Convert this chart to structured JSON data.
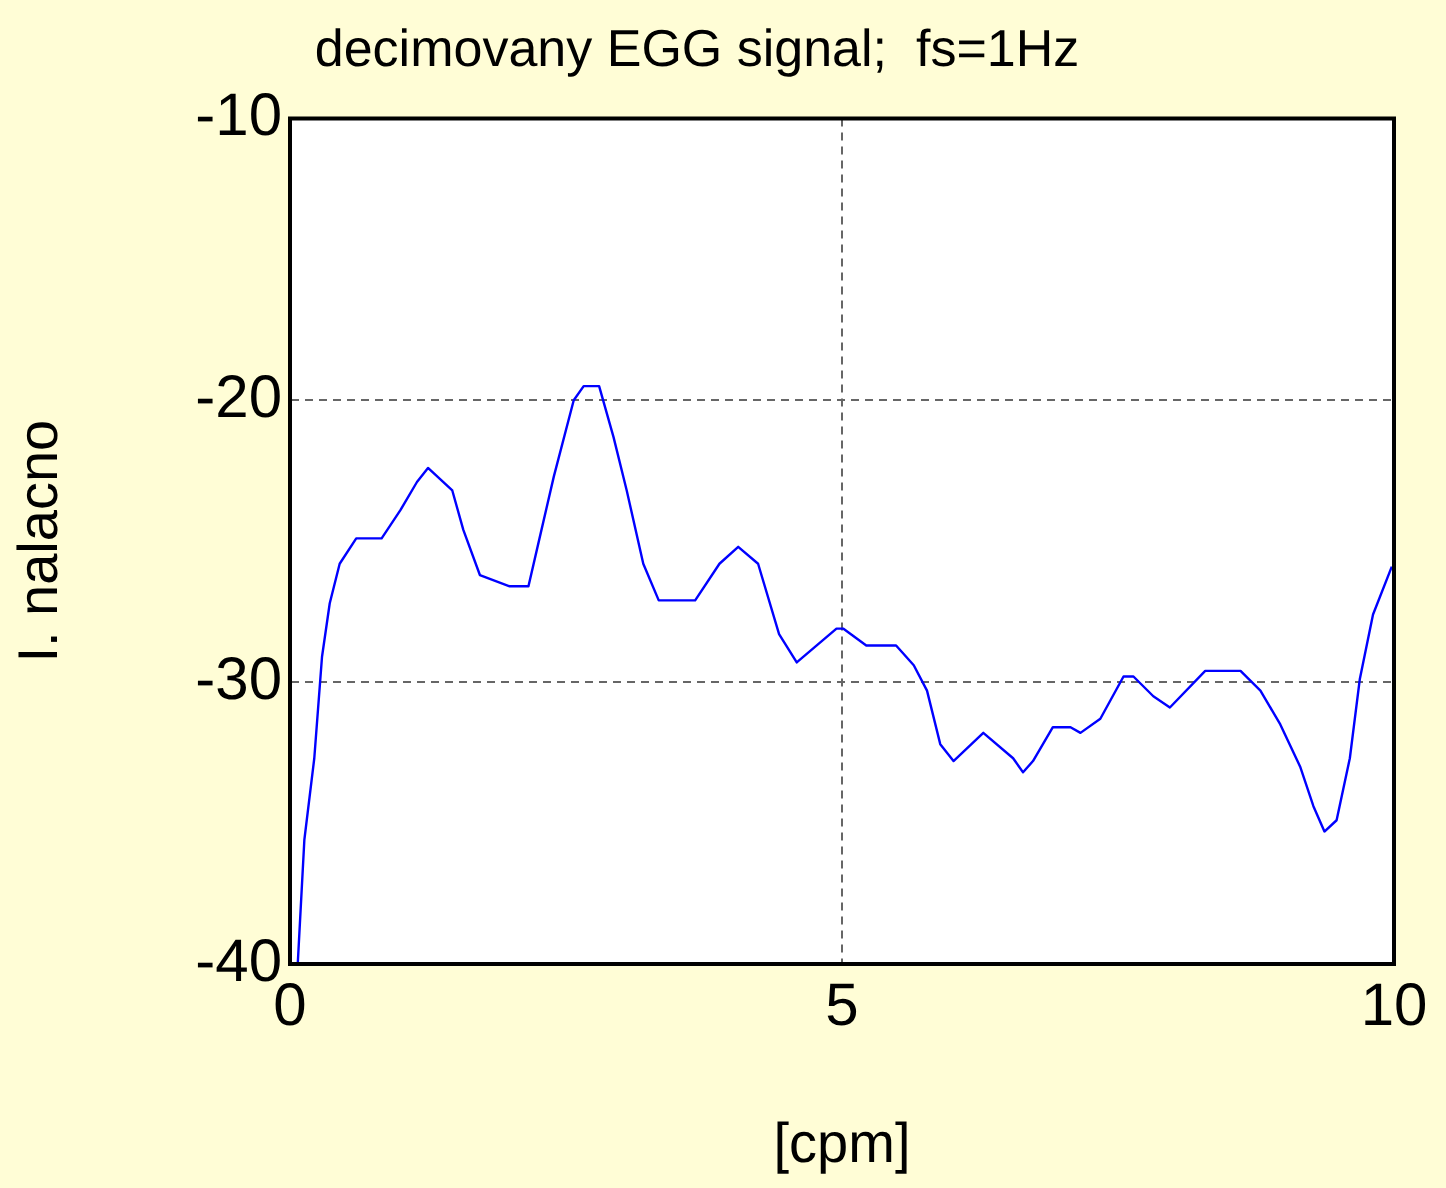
{
  "chart_data": {
    "type": "line",
    "title": "decimovany EGG signal;  fs=1Hz",
    "xlabel": "[cpm]",
    "ylabel": "I. nalacno",
    "xlim": [
      0,
      10
    ],
    "ylim": [
      -40,
      -10
    ],
    "xticks": [
      0,
      5,
      10
    ],
    "yticks": [
      -40,
      -30,
      -20,
      -10
    ],
    "grid": true,
    "legend": false,
    "marker": "none",
    "series": [
      {
        "color": "#0000ff",
        "x": [
          0.07,
          0.13,
          0.22,
          0.29,
          0.36,
          0.45,
          0.6,
          0.83,
          1.0,
          1.15,
          1.25,
          1.47,
          1.57,
          1.72,
          1.99,
          2.16,
          2.26,
          2.39,
          2.57,
          2.66,
          2.8,
          2.93,
          3.05,
          3.2,
          3.34,
          3.67,
          3.89,
          4.06,
          4.24,
          4.43,
          4.59,
          4.95,
          5.01,
          5.22,
          5.49,
          5.65,
          5.77,
          5.89,
          6.01,
          6.28,
          6.55,
          6.64,
          6.73,
          6.91,
          7.07,
          7.16,
          7.34,
          7.55,
          7.64,
          7.82,
          7.97,
          8.29,
          8.61,
          8.79,
          8.97,
          9.15,
          9.27,
          9.37,
          9.48,
          9.6,
          9.69,
          9.81,
          9.98
        ],
        "values": [
          -40.0,
          -35.6,
          -32.7,
          -29.1,
          -27.2,
          -25.8,
          -24.9,
          -24.9,
          -23.9,
          -22.9,
          -22.4,
          -23.2,
          -24.6,
          -26.2,
          -26.6,
          -26.6,
          -24.9,
          -22.7,
          -20.0,
          -19.5,
          -19.5,
          -21.3,
          -23.2,
          -25.8,
          -27.1,
          -27.1,
          -25.8,
          -25.2,
          -25.8,
          -28.3,
          -29.3,
          -28.1,
          -28.1,
          -28.7,
          -28.7,
          -29.4,
          -30.3,
          -32.2,
          -32.8,
          -31.8,
          -32.7,
          -33.2,
          -32.8,
          -31.6,
          -31.6,
          -31.8,
          -31.3,
          -29.8,
          -29.8,
          -30.5,
          -30.9,
          -29.6,
          -29.6,
          -30.3,
          -31.5,
          -33.0,
          -34.4,
          -35.3,
          -34.9,
          -32.7,
          -29.9,
          -27.6,
          -25.9
        ]
      }
    ]
  }
}
